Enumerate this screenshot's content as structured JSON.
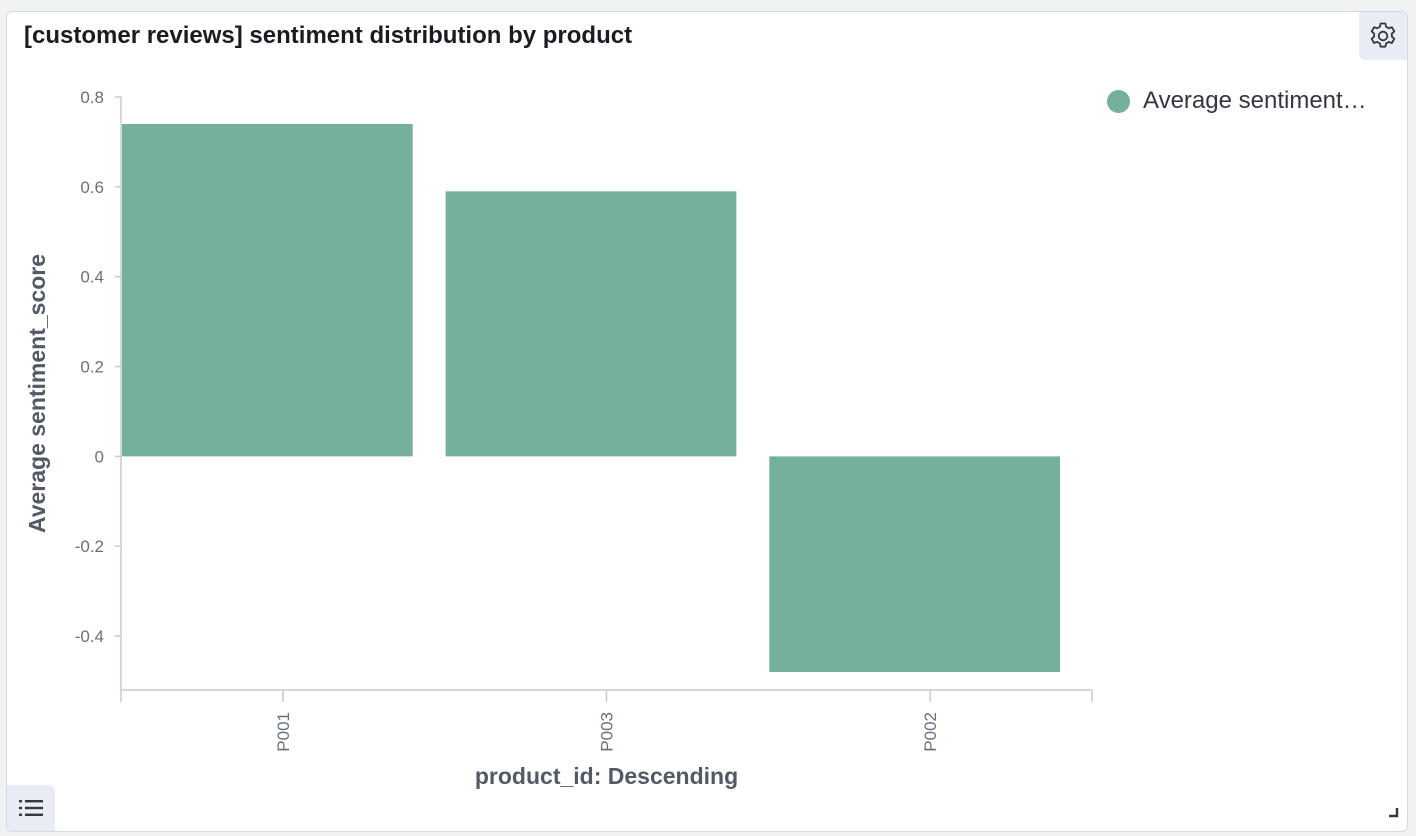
{
  "panel": {
    "title": "[customer reviews] sentiment distribution by product"
  },
  "icons": {
    "settings": "gear-icon",
    "legend_toggle": "list-icon",
    "resize": "resize-corner-icon"
  },
  "legend": {
    "label": "Average sentiment…",
    "color": "#75b09a"
  },
  "chart_data": {
    "type": "bar",
    "categories": [
      "P001",
      "P003",
      "P002"
    ],
    "series": [
      {
        "name": "Average sentiment…",
        "values": [
          0.74,
          0.59,
          -0.48
        ]
      }
    ],
    "xlabel": "product_id: Descending",
    "ylabel": "Average sentiment_score",
    "ylim": [
      -0.5,
      0.8
    ],
    "yticks": [
      0.8,
      0.6,
      0.4,
      0.2,
      0,
      -0.2,
      -0.4
    ],
    "ytick_labels": [
      "0.8",
      "0.6",
      "0.4",
      "0.2",
      "0",
      "-0.2",
      "-0.4"
    ],
    "legend_position": "top-right",
    "grid": false,
    "bar_color": "#75b09a"
  }
}
